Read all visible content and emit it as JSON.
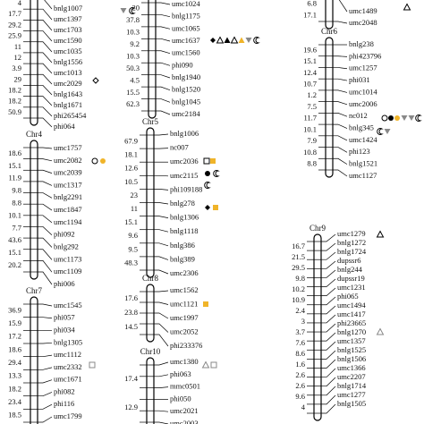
{
  "chromosomes": [
    {
      "distances": [
        "4",
        "17.7",
        "29.2",
        "25.9",
        "11",
        "12",
        "3.9",
        "29",
        "18.2",
        "18.2",
        "50.9"
      ],
      "markers": [
        "bnlg1007",
        "umc1397",
        "umc1703",
        "umc1590",
        "umc1035",
        "bnlg1556",
        "umc1013",
        "umc2029",
        "bnlg1643",
        "bnlg1671",
        "phi265454",
        "phi064"
      ]
    },
    {
      "distances": [
        "20",
        "37.8",
        "10.3",
        "9.2",
        "10.3",
        "50.3",
        "4.5",
        "15.5",
        "62.3"
      ],
      "markers": [
        "umc1024",
        "bnlg1175",
        "umc1065",
        "umc1637",
        "umc1560",
        "phi090",
        "bnlg1940",
        "bnlg1520",
        "bnlg1045",
        "umc2184"
      ]
    },
    {
      "distances": [
        "6.8",
        "17.1"
      ],
      "markers": [
        "umc1489",
        "umc2048"
      ]
    },
    {
      "name": "Chr6",
      "distances": [
        "19.6",
        "15.1",
        "12.4",
        "10.7",
        "1.2",
        "7.5",
        "11.7",
        "10.1",
        "7.9",
        "10.8",
        "8.8"
      ],
      "markers": [
        "bnlg238",
        "phi423796",
        "umc1257",
        "phi031",
        "umc1014",
        "umc2006",
        "nc012",
        "bnlg345",
        "umc1424",
        "phi123",
        "bnlg1521",
        "umc1127"
      ]
    },
    {
      "name": "Chr4",
      "distances": [
        "18.6",
        "15.1",
        "11.9",
        "9.8",
        "8.8",
        "10.1",
        "7.7",
        "43.6",
        "15.1",
        "20.2"
      ],
      "markers": [
        "umc1757",
        "umc2082",
        "umc2039",
        "umc1317",
        "bnlg2291",
        "umc1847",
        "umc1194",
        "phi092",
        "bnlg292",
        "umc1173",
        "umc1109",
        "phi006"
      ]
    },
    {
      "name": "Chr5",
      "distances": [
        "67.9",
        "18.1",
        "12.6",
        "10.5",
        "23",
        "11",
        "15.1",
        "9.6",
        "9.5",
        "48.3"
      ],
      "markers": [
        "bnlg1006",
        "nc007",
        "umc2036",
        "umc2115",
        "phi109188",
        "bnlg278",
        "bnlg1306",
        "bnlg1118",
        "bnlg386",
        "bnlg389",
        "umc2306"
      ]
    },
    {
      "name": "Chr9",
      "distances": [
        "16.7",
        "21.5",
        "29.5",
        "9.8",
        "10.2",
        "10.9",
        "2.4",
        "3",
        "3.7",
        "7.6",
        "8.6",
        "1.6",
        "2.6",
        "2.6",
        "9.6",
        "4"
      ],
      "markers": [
        "umc1279",
        "bnlg1272",
        "bnlg1724",
        "dupssr6",
        "bnlg244",
        "dupssr19",
        "umc1231",
        "phi065",
        "umc1494",
        "umc1417",
        "phi23665",
        "bnlg1270",
        "umc1357",
        "bnlg1525",
        "bnlg1506",
        "umc1366",
        "umc2207",
        "bnlg1714",
        "umc1277",
        "bnlg1505"
      ]
    },
    {
      "name": "Chr7",
      "distances": [
        "36.9",
        "15.9",
        "17.2",
        "18.6",
        "29.4",
        "13.3",
        "18.2",
        "23.4",
        "18.5"
      ],
      "markers": [
        "umc1545",
        "phi057",
        "phi034",
        "bnlg1305",
        "umc1112",
        "umc2332",
        "umc1671",
        "phi082",
        "phi116",
        "umc1799"
      ]
    },
    {
      "name": "Chr8",
      "distances": [
        "17.6",
        "23.8",
        "14.5"
      ],
      "markers": [
        "umc1562",
        "umc1121",
        "umc1997",
        "umc2052",
        "phi233376"
      ]
    },
    {
      "name": "Chr10",
      "distances": [
        "17.4",
        "12.9"
      ],
      "markers": [
        "umc1380",
        "phi063",
        "mmc0501",
        "phi050",
        "umc2021",
        "umc2003"
      ]
    }
  ]
}
